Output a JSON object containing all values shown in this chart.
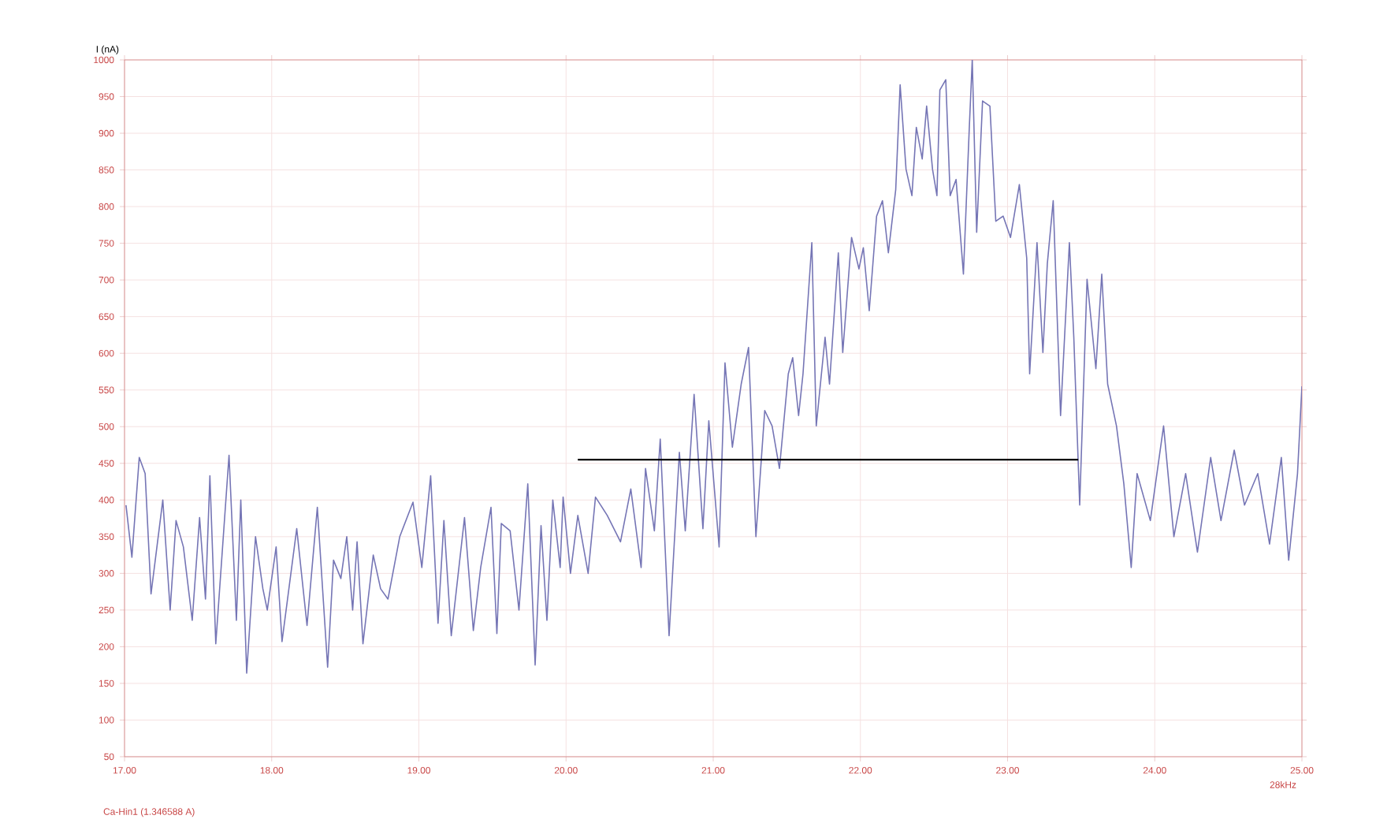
{
  "chart_data": {
    "type": "line",
    "ylabel": "I (nA)",
    "xlabel": "28kHz",
    "annotations": [
      "Ca-Hin1 (1.346588 A)"
    ],
    "xlim": [
      17,
      25
    ],
    "xticks": [
      {
        "value": 17,
        "label": "17.00"
      },
      {
        "value": 18,
        "label": "18.00"
      },
      {
        "value": 19,
        "label": "19.00"
      },
      {
        "value": 20,
        "label": "20.00"
      },
      {
        "value": 21,
        "label": "21.00"
      },
      {
        "value": 22,
        "label": "22.00"
      },
      {
        "value": 23,
        "label": "23.00"
      },
      {
        "value": 24,
        "label": "24.00"
      },
      {
        "value": 25,
        "label": "25.00"
      }
    ],
    "ylim": [
      50,
      1000
    ],
    "yticks": [
      50,
      100,
      150,
      200,
      250,
      300,
      350,
      400,
      450,
      500,
      550,
      600,
      650,
      700,
      750,
      800,
      850,
      900,
      950,
      1000
    ],
    "grid": true,
    "series": [
      {
        "color": "#7575b5",
        "x": [
          17.01,
          17.05,
          17.1,
          17.14,
          17.18,
          17.26,
          17.31,
          17.35,
          17.4,
          17.46,
          17.51,
          17.55,
          17.58,
          17.62,
          17.71,
          17.76,
          17.79,
          17.83,
          17.89,
          17.94,
          17.97,
          18.03,
          18.07,
          18.17,
          18.24,
          18.31,
          18.38,
          18.42,
          18.47,
          18.51,
          18.55,
          18.58,
          18.62,
          18.69,
          18.74,
          18.79,
          18.87,
          18.96,
          19.02,
          19.08,
          19.13,
          19.17,
          19.22,
          19.31,
          19.37,
          19.42,
          19.49,
          19.53,
          19.56,
          19.62,
          19.68,
          19.74,
          19.79,
          19.83,
          19.87,
          19.91,
          19.96,
          19.98,
          20.03,
          20.08,
          20.15,
          20.2,
          20.28,
          20.37,
          20.44,
          20.51,
          20.54,
          20.6,
          20.64,
          20.7,
          20.77,
          20.81,
          20.87,
          20.93,
          20.97,
          21.04,
          21.08,
          21.13,
          21.19,
          21.24,
          21.29,
          21.35,
          21.4,
          21.45,
          21.51,
          21.54,
          21.58,
          21.61,
          21.67,
          21.7,
          21.76,
          21.79,
          21.85,
          21.88,
          21.94,
          21.99,
          22.02,
          22.06,
          22.11,
          22.15,
          22.19,
          22.24,
          22.27,
          22.31,
          22.35,
          22.38,
          22.42,
          22.45,
          22.49,
          22.52,
          22.54,
          22.58,
          22.61,
          22.65,
          22.7,
          22.74,
          22.76,
          22.79,
          22.83,
          22.88,
          22.92,
          22.97,
          23.02,
          23.08,
          23.13,
          23.15,
          23.2,
          23.24,
          23.27,
          23.31,
          23.36,
          23.42,
          23.45,
          23.49,
          23.54,
          23.6,
          23.64,
          23.68,
          23.74,
          23.79,
          23.84,
          23.88,
          23.97,
          24.06,
          24.13,
          24.21,
          24.29,
          24.38,
          24.45,
          24.54,
          24.61,
          24.7,
          24.78,
          24.86,
          24.91,
          24.97,
          25.0
        ],
        "values": [
          393,
          322,
          458,
          436,
          272,
          400,
          250,
          372,
          336,
          236,
          376,
          265,
          433,
          204,
          461,
          236,
          400,
          164,
          350,
          279,
          250,
          336,
          207,
          361,
          229,
          390,
          172,
          318,
          293,
          350,
          250,
          343,
          204,
          325,
          279,
          265,
          350,
          397,
          308,
          433,
          232,
          372,
          215,
          376,
          222,
          308,
          390,
          218,
          368,
          358,
          250,
          422,
          175,
          365,
          236,
          400,
          308,
          404,
          300,
          379,
          300,
          404,
          379,
          343,
          415,
          308,
          443,
          358,
          483,
          215,
          465,
          358,
          544,
          361,
          508,
          336,
          587,
          472,
          558,
          608,
          350,
          522,
          501,
          443,
          572,
          594,
          515,
          572,
          751,
          501,
          622,
          558,
          737,
          601,
          758,
          715,
          744,
          658,
          787,
          808,
          737,
          823,
          966,
          851,
          815,
          908,
          865,
          937,
          851,
          815,
          959,
          973,
          815,
          837,
          708,
          908,
          1000,
          765,
          944,
          937,
          780,
          787,
          758,
          830,
          730,
          572,
          751,
          601,
          722,
          808,
          515,
          751,
          622,
          393,
          701,
          579,
          708,
          558,
          501,
          422,
          308,
          436,
          372,
          501,
          350,
          436,
          329,
          458,
          372,
          468,
          393,
          436,
          340,
          458,
          318,
          436,
          555
        ]
      },
      {
        "color": "#000000",
        "x": [
          20.08,
          23.48
        ],
        "values": [
          455,
          455
        ]
      }
    ]
  }
}
